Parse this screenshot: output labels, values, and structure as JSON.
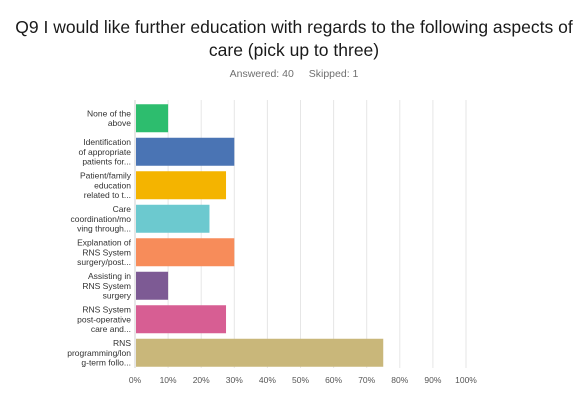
{
  "header": {
    "question": "Q9 I would like further education with regards to the following aspects of care (pick up to three)",
    "answered_label": "Answered: 40",
    "skipped_label": "Skipped: 1"
  },
  "chart_data": {
    "type": "bar",
    "orientation": "horizontal",
    "categories": [
      [
        "None of the",
        "above"
      ],
      [
        "Identification",
        "of appropriate",
        "patients for..."
      ],
      [
        "Patient/family",
        "education",
        "related to t..."
      ],
      [
        "Care",
        "coordination/mo",
        "ving through..."
      ],
      [
        "Explanation of",
        "RNS System",
        "surgery/post..."
      ],
      [
        "Assisting in",
        "RNS System",
        "surgery"
      ],
      [
        "RNS System",
        "post-operative",
        "care and..."
      ],
      [
        "RNS",
        "programming/lon",
        "g-term follo..."
      ]
    ],
    "values": [
      10,
      30,
      27.5,
      22.5,
      30,
      10,
      27.5,
      75
    ],
    "colors": [
      "#2dbd6e",
      "#4a74b4",
      "#f4b400",
      "#6cc9cf",
      "#f78c5a",
      "#7d5a94",
      "#d75e93",
      "#c9b77a"
    ],
    "xlim": [
      0,
      100
    ],
    "xticks": [
      "0%",
      "10%",
      "20%",
      "30%",
      "40%",
      "50%",
      "60%",
      "70%",
      "80%",
      "90%",
      "100%"
    ],
    "grid": true,
    "legend": "none"
  }
}
